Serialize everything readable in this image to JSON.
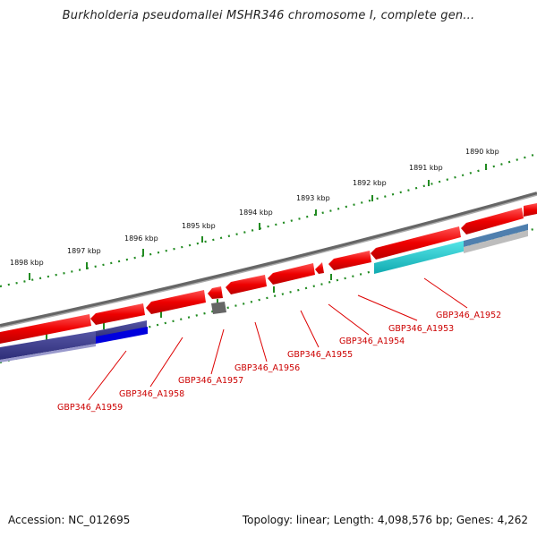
{
  "title": "Burkholderia pseudomallei MSHR346 chromosome I, complete gen...",
  "footer": {
    "accession": "Accession: NC_012695",
    "topology": "Topology: linear; Length: 4,098,576 bp; Genes: 4,262"
  },
  "ruler_labels": [
    "1890 kbp",
    "1891 kbp",
    "1892 kbp",
    "1893 kbp",
    "1894 kbp",
    "1895 kbp",
    "1896 kbp",
    "1897 kbp",
    "1898 kbp"
  ],
  "gene_labels": [
    "GBP346_A1952",
    "GBP346_A1953",
    "GBP346_A1954",
    "GBP346_A1955",
    "GBP346_A1956",
    "GBP346_A1957",
    "GBP346_A1958",
    "GBP346_A1959"
  ],
  "colors": {
    "forward_gene": "#ee0000",
    "label_red": "#cc0000",
    "tick_green": "#228b22",
    "backbone": "#777777",
    "cyan_feature": "#19c8cc",
    "steel_feature": "#4f7fae",
    "navy_feature": "#3a3a8c",
    "blue_feature": "#0000dd",
    "gray_feature": "#666666"
  }
}
